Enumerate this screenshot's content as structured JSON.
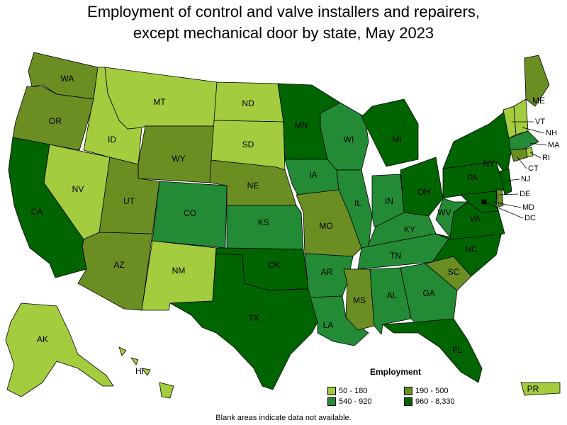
{
  "title_line1": "Employment of control and valve installers and repairers,",
  "title_line2": "except mechanical door by state, May 2023",
  "legend": {
    "title": "Employment",
    "items": [
      {
        "label": "50 - 180",
        "color": "#a3cc3f"
      },
      {
        "label": "190 - 500",
        "color": "#6b8e23"
      },
      {
        "label": "540 - 920",
        "color": "#238b35"
      },
      {
        "label": "960 - 8,330",
        "color": "#006400"
      }
    ]
  },
  "footnote": "Blank areas indicate data not available.",
  "states": {
    "WA": 1,
    "OR": 1,
    "CA": 3,
    "NV": 0,
    "ID": 0,
    "MT": 0,
    "WY": 1,
    "UT": 1,
    "AZ": 1,
    "CO": 2,
    "NM": 0,
    "ND": 0,
    "SD": 0,
    "NE": 1,
    "KS": 2,
    "OK": 3,
    "TX": 3,
    "MN": 3,
    "IA": 2,
    "MO": 1,
    "AR": 2,
    "LA": 2,
    "WI": 2,
    "IL": 2,
    "MI": 3,
    "IN": 2,
    "OH": 3,
    "KY": 2,
    "TN": 2,
    "MS": 1,
    "AL": 2,
    "GA": 2,
    "FL": 3,
    "SC": 1,
    "NC": 3,
    "VA": 3,
    "WV": 2,
    "PA": 3,
    "NY": 3,
    "ME": 1,
    "VT": 0,
    "NH": 0,
    "MA": 2,
    "RI": 0,
    "CT": 1,
    "NJ": 3,
    "DE": 1,
    "MD": 3,
    "DC": 3,
    "AK": 0,
    "HI": 0,
    "PR": 0
  }
}
